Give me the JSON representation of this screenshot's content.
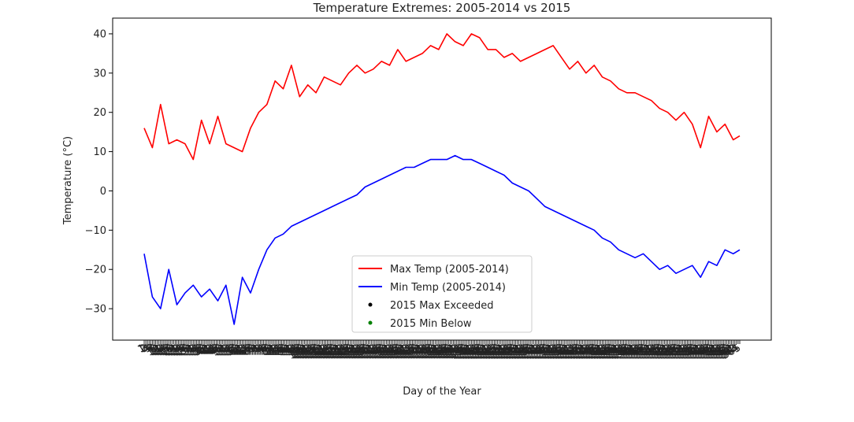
{
  "chart_data": {
    "type": "line",
    "title": "Temperature Extremes: 2005-2014 vs 2015",
    "xlabel": "Day of the Year",
    "ylabel": "Temperature (°C)",
    "ylim": [
      -38,
      44
    ],
    "yticks": [
      -30,
      -20,
      -10,
      0,
      10,
      20,
      30,
      40
    ],
    "xlim": [
      1,
      365
    ],
    "x_tick_every_day": true,
    "legend_position": "lower-center",
    "series": [
      {
        "name": "Max Temp (2005-2014)",
        "color": "#ff0000",
        "x": [
          1,
          6,
          11,
          16,
          21,
          26,
          31,
          36,
          41,
          46,
          51,
          56,
          61,
          66,
          71,
          76,
          81,
          86,
          91,
          96,
          101,
          106,
          111,
          116,
          121,
          126,
          131,
          136,
          141,
          146,
          151,
          156,
          161,
          166,
          171,
          176,
          181,
          186,
          191,
          196,
          201,
          206,
          211,
          216,
          221,
          226,
          231,
          236,
          241,
          246,
          251,
          256,
          261,
          266,
          271,
          276,
          281,
          286,
          291,
          296,
          301,
          306,
          311,
          316,
          321,
          326,
          331,
          336,
          341,
          346,
          351,
          356,
          361,
          365
        ],
        "values": [
          16,
          11,
          22,
          12,
          13,
          12,
          8,
          18,
          12,
          19,
          12,
          11,
          10,
          16,
          20,
          22,
          28,
          26,
          32,
          24,
          27,
          25,
          29,
          28,
          27,
          30,
          32,
          30,
          31,
          33,
          32,
          36,
          33,
          34,
          35,
          37,
          36,
          40,
          38,
          37,
          40,
          39,
          36,
          36,
          34,
          35,
          33,
          34,
          35,
          36,
          37,
          34,
          31,
          33,
          30,
          32,
          29,
          28,
          26,
          25,
          25,
          24,
          23,
          21,
          20,
          18,
          20,
          17,
          11,
          19,
          15,
          17,
          13,
          14
        ]
      },
      {
        "name": "Min Temp (2005-2014)",
        "color": "#0000ff",
        "x": [
          1,
          6,
          11,
          16,
          21,
          26,
          31,
          36,
          41,
          46,
          51,
          56,
          61,
          66,
          71,
          76,
          81,
          86,
          91,
          96,
          101,
          106,
          111,
          116,
          121,
          126,
          131,
          136,
          141,
          146,
          151,
          156,
          161,
          166,
          171,
          176,
          181,
          186,
          191,
          196,
          201,
          206,
          211,
          216,
          221,
          226,
          231,
          236,
          241,
          246,
          251,
          256,
          261,
          266,
          271,
          276,
          281,
          286,
          291,
          296,
          301,
          306,
          311,
          316,
          321,
          326,
          331,
          336,
          341,
          346,
          351,
          356,
          361,
          365
        ],
        "values": [
          -16,
          -27,
          -30,
          -20,
          -29,
          -26,
          -24,
          -27,
          -25,
          -28,
          -24,
          -34,
          -22,
          -26,
          -20,
          -15,
          -12,
          -11,
          -9,
          -8,
          -7,
          -6,
          -5,
          -4,
          -3,
          -2,
          -1,
          1,
          2,
          3,
          4,
          5,
          6,
          6,
          7,
          8,
          8,
          8,
          9,
          8,
          8,
          7,
          6,
          5,
          4,
          2,
          1,
          0,
          -2,
          -4,
          -5,
          -6,
          -7,
          -8,
          -9,
          -10,
          -12,
          -13,
          -15,
          -16,
          -17,
          -16,
          -18,
          -20,
          -19,
          -21,
          -20,
          -19,
          -22,
          -18,
          -19,
          -15,
          -16,
          -15
        ]
      },
      {
        "name": "2015 Max Exceeded",
        "color": "#000000",
        "marker": "point",
        "x": [],
        "values": []
      },
      {
        "name": "2015 Min Below",
        "color": "#008000",
        "marker": "point",
        "x": [],
        "values": []
      }
    ]
  }
}
